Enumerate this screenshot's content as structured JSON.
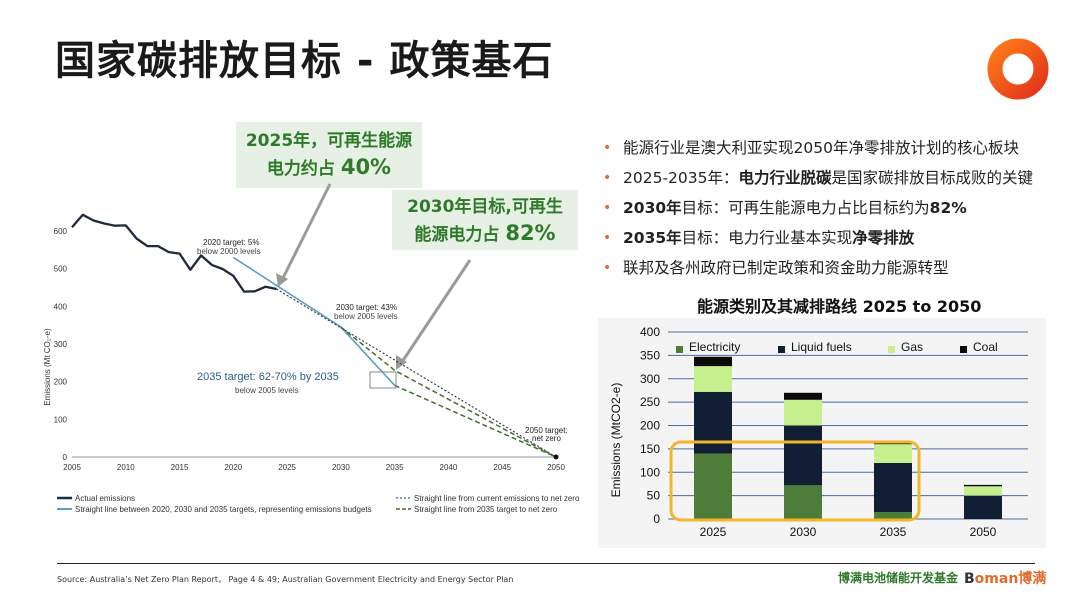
{
  "page": {
    "title": "国家碳排放目标 - 政策基石",
    "source": "Source: Australia’s Net Zero Plan Report， Page 4 & 49; Australian Government Electricity and Energy Sector Plan",
    "footer_brand": "博满电池储能开发基金",
    "footer_logo_a": "B",
    "footer_logo_b": "oman博满"
  },
  "callouts": {
    "c2025_line1": "2025年，可再生能源",
    "c2025_line2a": "电力约占 ",
    "c2025_line2b": "40%",
    "c2030_line1": "2030年目标,可再生",
    "c2030_line2a": "能源电力占 ",
    "c2030_line2b": "82%"
  },
  "bullets": [
    {
      "pre": "能源行业是澳大利亚实现2050年净零排放计划的核心板块",
      "bold": "",
      "post": ""
    },
    {
      "pre": "2025-2035年：",
      "bold": "电力行业脱碳",
      "post": "是国家碳排放目标成败的关键"
    },
    {
      "pre": "",
      "bold": "2030年",
      "post": "目标：可再生能源电力占比目标约为",
      "bold2": "82%"
    },
    {
      "pre": "",
      "bold": "2035年",
      "post": "目标：电力行业基本实现",
      "bold2": "净零排放"
    },
    {
      "pre": "联邦及各州政府已制定政策和资金助力能源转型",
      "bold": "",
      "post": ""
    }
  ],
  "chart_data": [
    {
      "type": "line",
      "ylabel": "Emissions (Mt CO₂-e)",
      "xlim": [
        2005,
        2050
      ],
      "ylim": [
        0,
        600
      ],
      "x_ticks": [
        "2005",
        "2010",
        "2015",
        "2020",
        "2025",
        "2030",
        "2035",
        "2040",
        "2045",
        "2050"
      ],
      "y_ticks": [
        "0",
        "100",
        "200",
        "300",
        "400",
        "500",
        "600"
      ],
      "series": [
        {
          "name": "Actual emissions",
          "color": "#1f2a3c",
          "x": [
            2005,
            2006,
            2007,
            2008,
            2009,
            2010,
            2011,
            2012,
            2013,
            2014,
            2015,
            2016,
            2017,
            2018,
            2019,
            2020,
            2021,
            2022,
            2023,
            2024
          ],
          "y": [
            610,
            643,
            628,
            620,
            614,
            615,
            580,
            560,
            560,
            544,
            540,
            497,
            535,
            510,
            499,
            481,
            439,
            440,
            452,
            446
          ]
        },
        {
          "name": "Straight line between 2020, 2030 and 2035 targets, representing emissions budgets",
          "color": "#5b9ec9",
          "x": [
            2020,
            2030,
            2035
          ],
          "y": [
            530,
            345,
            190
          ]
        },
        {
          "name": "Straight line from current emissions to net zero",
          "color": "#333333",
          "x": [
            2024,
            2050
          ],
          "y": [
            446,
            0
          ]
        },
        {
          "name": "Straight line from 2035 target to net zero",
          "color": "#3f6f2a",
          "x": [
            2030,
            2035,
            2050
          ],
          "y": [
            345,
            230,
            0
          ]
        },
        {
          "name": "Straight line from 2035 target to net zero (lower)",
          "color": "#3f6f2a",
          "x": [
            2035,
            2050
          ],
          "y": [
            190,
            0
          ]
        }
      ],
      "annotations": {
        "a2020_l1": "2020 target: 5%",
        "a2020_l2": "below 2000 levels",
        "a2030_l1": "2030 target: 43%",
        "a2030_l2": "below 2005 levels",
        "a2035_l1": "2035 target: 62-70% by 2035",
        "a2035_l2": "below 2005 levels",
        "a2050_l1": "2050 target:",
        "a2050_l2": "net zero"
      },
      "legend": {
        "l1": "Actual emissions",
        "l2": "Straight line between 2020, 2030 and 2035 targets, representing emissions budgets",
        "l3": "Straight line from current emissions to net zero",
        "l4": "Straight line from 2035 target to net zero"
      }
    },
    {
      "type": "bar",
      "stacked": true,
      "title": "能源类别及其减排路线 2025 to 2050",
      "ylabel": "Emissions (MtCO2-e)",
      "categories": [
        "2025",
        "2030",
        "2035",
        "2050"
      ],
      "ylim": [
        0,
        400
      ],
      "y_ticks": [
        "0",
        "50",
        "100",
        "150",
        "200",
        "250",
        "300",
        "350",
        "400"
      ],
      "legend_position": "top",
      "series": [
        {
          "name": "Electricity",
          "color": "#4e7d3a",
          "values": [
            140,
            72,
            15,
            0
          ]
        },
        {
          "name": "Liquid fuels",
          "color": "#111e33",
          "values": [
            132,
            128,
            105,
            50
          ]
        },
        {
          "name": "Gas",
          "color": "#c6ef8e",
          "values": [
            55,
            55,
            40,
            20
          ]
        },
        {
          "name": "Coal",
          "color": "#0a0a0a",
          "values": [
            20,
            15,
            6,
            3
          ]
        }
      ]
    }
  ]
}
